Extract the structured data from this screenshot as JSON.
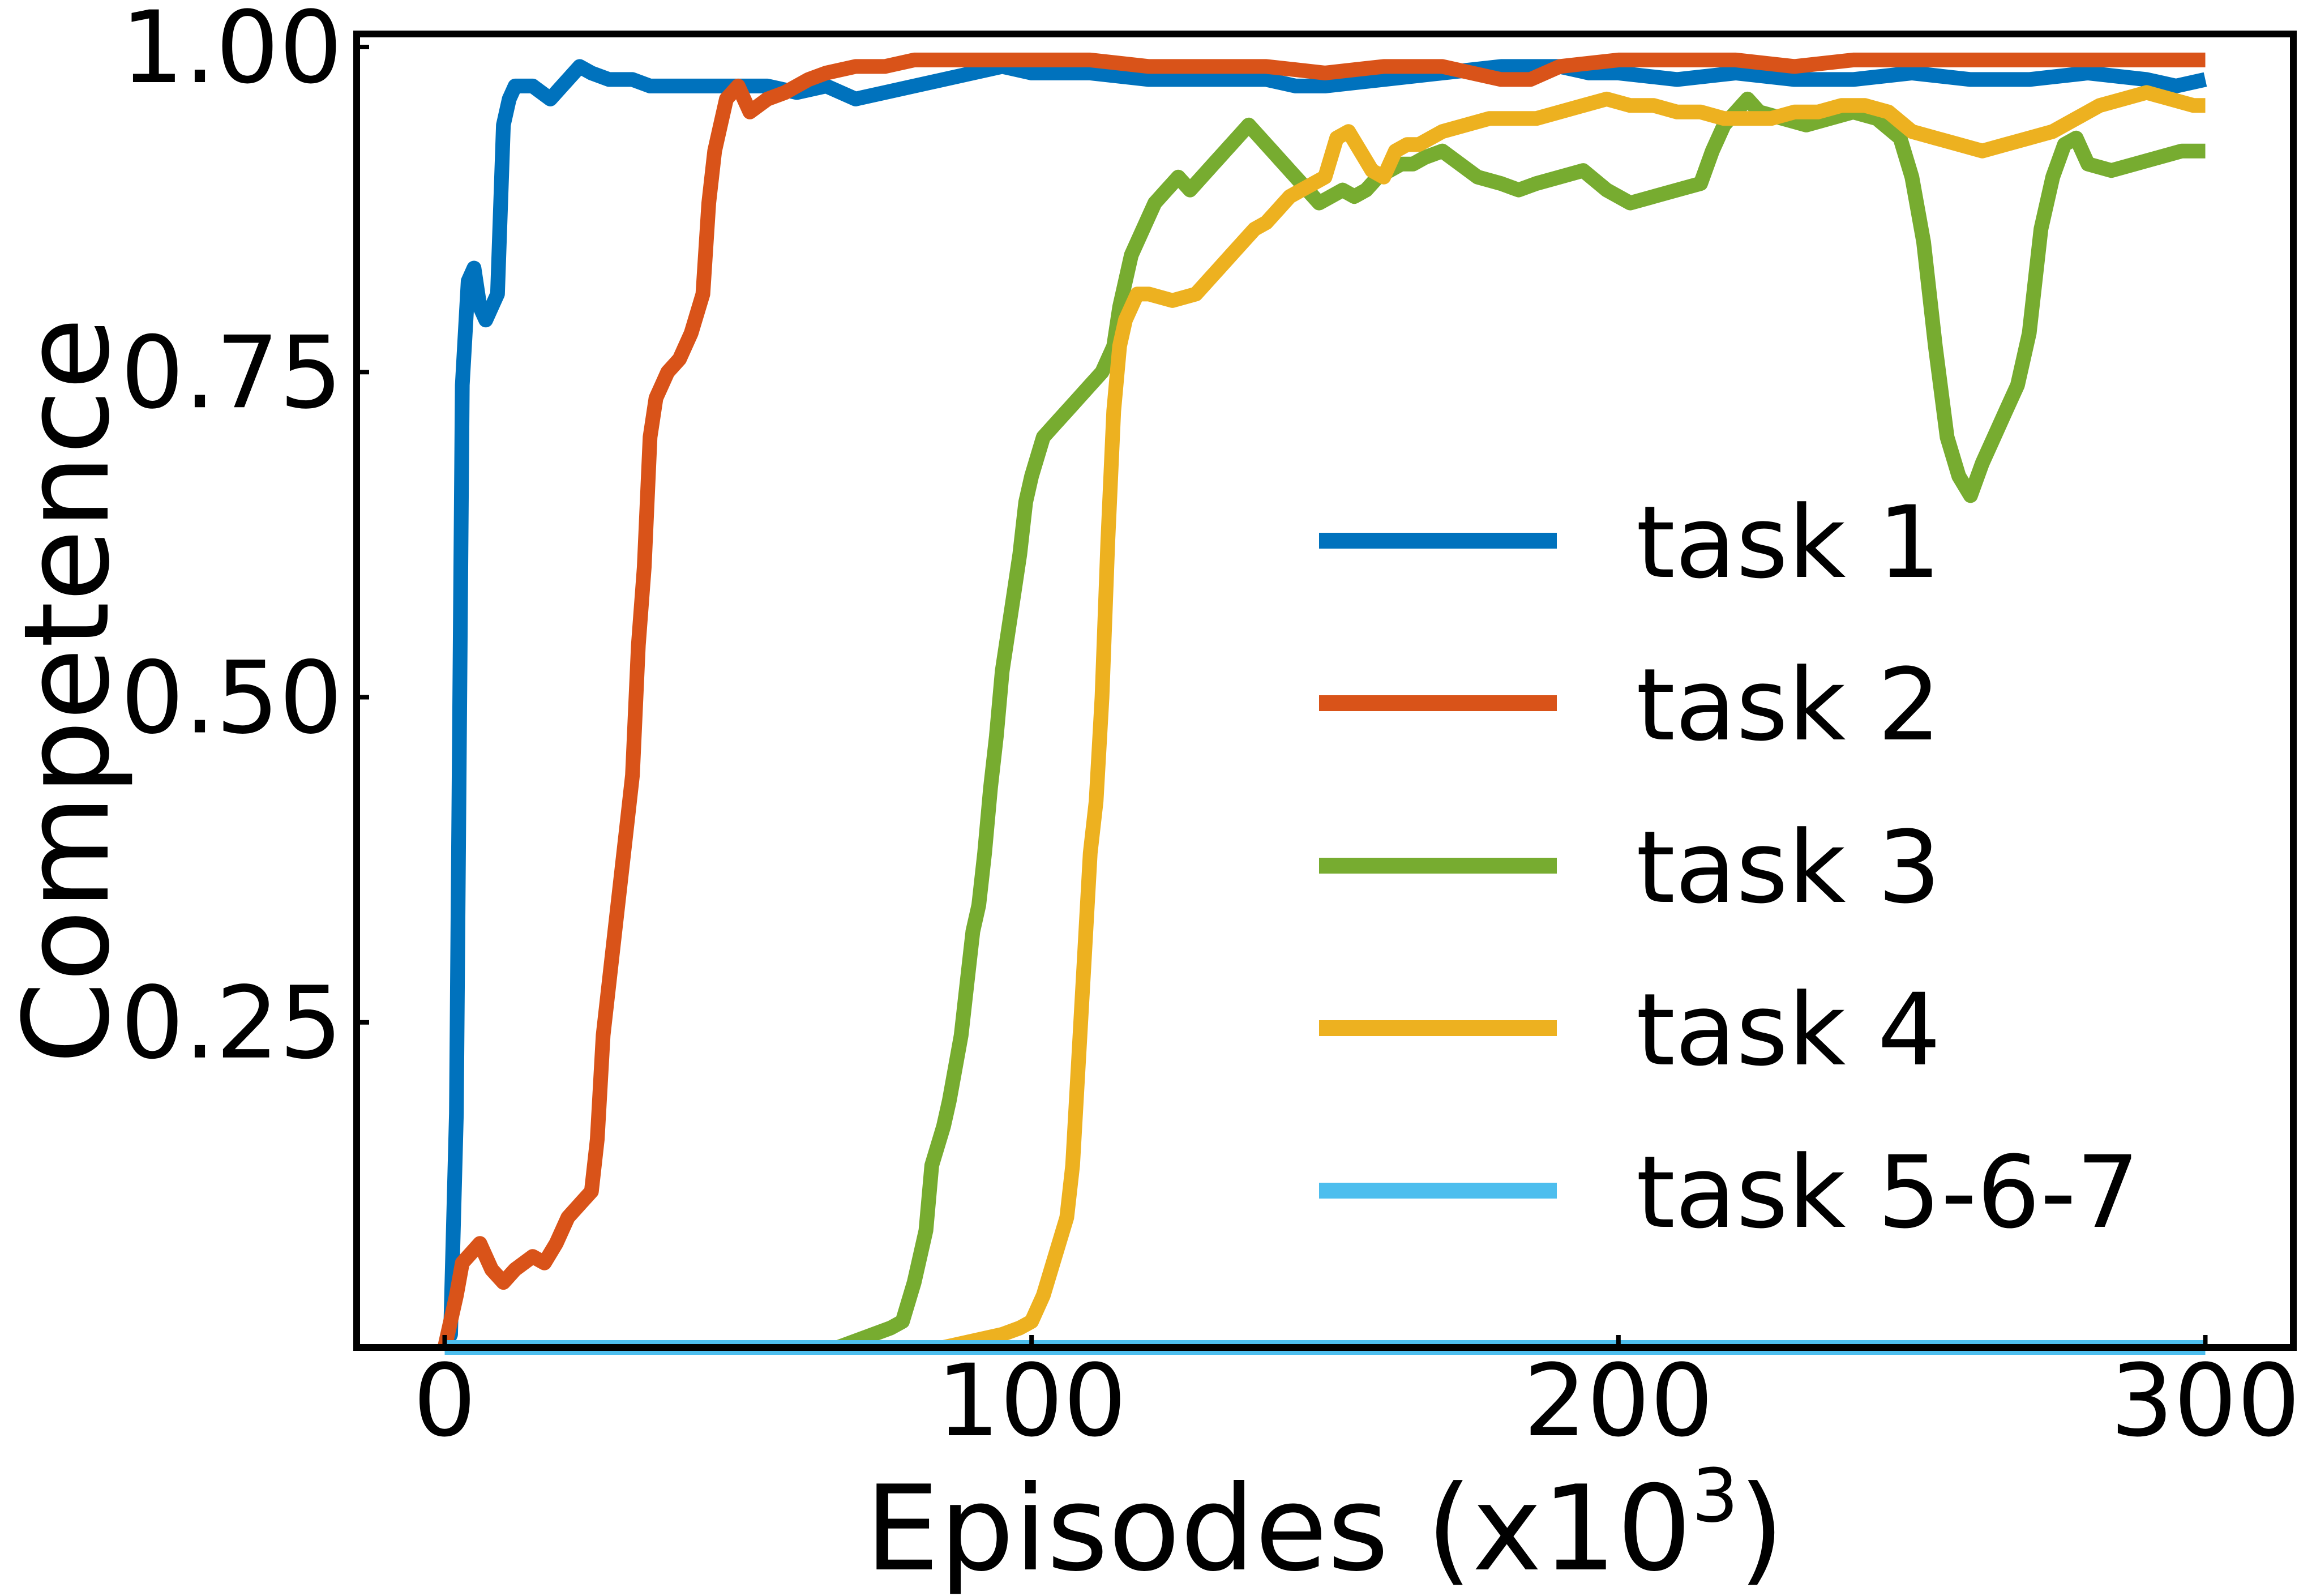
{
  "chart_data": {
    "type": "line",
    "xlabel": "Episodes (x10",
    "xlabel_sup": "3",
    "xlabel_close": ")",
    "ylabel": "Competence",
    "xlim": [
      -15,
      315
    ],
    "ylim": [
      0,
      1.01
    ],
    "x_ticks": [
      0,
      100,
      200,
      300
    ],
    "x_tick_labels": [
      "0",
      "100",
      "200",
      "300"
    ],
    "y_ticks": [
      0.25,
      0.5,
      0.75,
      1.0
    ],
    "y_tick_labels": [
      "0.25",
      "0.50",
      "0.75",
      "1.00"
    ],
    "grid": false,
    "legend_position": "lower right",
    "series": [
      {
        "name": "task 1",
        "color": "#0072BD",
        "points": [
          [
            0,
            0.0
          ],
          [
            1,
            0.01
          ],
          [
            2,
            0.18
          ],
          [
            3,
            0.74
          ],
          [
            4,
            0.82
          ],
          [
            5,
            0.83
          ],
          [
            6,
            0.8
          ],
          [
            7,
            0.79
          ],
          [
            8,
            0.8
          ],
          [
            9,
            0.81
          ],
          [
            10,
            0.94
          ],
          [
            11,
            0.96
          ],
          [
            12,
            0.97
          ],
          [
            15,
            0.97
          ],
          [
            18,
            0.96
          ],
          [
            20,
            0.97
          ],
          [
            22,
            0.98
          ],
          [
            23,
            0.985
          ],
          [
            25,
            0.98
          ],
          [
            28,
            0.975
          ],
          [
            32,
            0.975
          ],
          [
            35,
            0.97
          ],
          [
            40,
            0.97
          ],
          [
            45,
            0.97
          ],
          [
            50,
            0.97
          ],
          [
            55,
            0.97
          ],
          [
            60,
            0.965
          ],
          [
            65,
            0.97
          ],
          [
            70,
            0.96
          ],
          [
            75,
            0.965
          ],
          [
            80,
            0.97
          ],
          [
            85,
            0.975
          ],
          [
            90,
            0.98
          ],
          [
            95,
            0.985
          ],
          [
            100,
            0.98
          ],
          [
            110,
            0.98
          ],
          [
            120,
            0.975
          ],
          [
            130,
            0.975
          ],
          [
            140,
            0.975
          ],
          [
            145,
            0.97
          ],
          [
            150,
            0.97
          ],
          [
            160,
            0.975
          ],
          [
            170,
            0.98
          ],
          [
            180,
            0.985
          ],
          [
            190,
            0.985
          ],
          [
            195,
            0.98
          ],
          [
            200,
            0.98
          ],
          [
            210,
            0.975
          ],
          [
            220,
            0.98
          ],
          [
            230,
            0.975
          ],
          [
            240,
            0.975
          ],
          [
            250,
            0.98
          ],
          [
            260,
            0.975
          ],
          [
            270,
            0.975
          ],
          [
            280,
            0.98
          ],
          [
            290,
            0.975
          ],
          [
            295,
            0.97
          ],
          [
            300,
            0.975
          ]
        ]
      },
      {
        "name": "task 2",
        "color": "#D95319",
        "points": [
          [
            0,
            0.0
          ],
          [
            2,
            0.04
          ],
          [
            3,
            0.065
          ],
          [
            4,
            0.07
          ],
          [
            6,
            0.08
          ],
          [
            8,
            0.06
          ],
          [
            10,
            0.05
          ],
          [
            12,
            0.06
          ],
          [
            15,
            0.07
          ],
          [
            17,
            0.065
          ],
          [
            19,
            0.08
          ],
          [
            21,
            0.1
          ],
          [
            23,
            0.11
          ],
          [
            25,
            0.12
          ],
          [
            26,
            0.16
          ],
          [
            27,
            0.24
          ],
          [
            29,
            0.32
          ],
          [
            31,
            0.4
          ],
          [
            32,
            0.44
          ],
          [
            33,
            0.54
          ],
          [
            34,
            0.6
          ],
          [
            35,
            0.7
          ],
          [
            36,
            0.73
          ],
          [
            37,
            0.74
          ],
          [
            38,
            0.75
          ],
          [
            40,
            0.76
          ],
          [
            42,
            0.78
          ],
          [
            44,
            0.81
          ],
          [
            45,
            0.88
          ],
          [
            46,
            0.92
          ],
          [
            47,
            0.94
          ],
          [
            48,
            0.96
          ],
          [
            50,
            0.97
          ],
          [
            52,
            0.95
          ],
          [
            55,
            0.96
          ],
          [
            58,
            0.965
          ],
          [
            60,
            0.97
          ],
          [
            62,
            0.975
          ],
          [
            65,
            0.98
          ],
          [
            70,
            0.985
          ],
          [
            75,
            0.985
          ],
          [
            80,
            0.99
          ],
          [
            85,
            0.99
          ],
          [
            90,
            0.99
          ],
          [
            95,
            0.99
          ],
          [
            100,
            0.99
          ],
          [
            110,
            0.99
          ],
          [
            120,
            0.985
          ],
          [
            130,
            0.985
          ],
          [
            140,
            0.985
          ],
          [
            150,
            0.98
          ],
          [
            160,
            0.985
          ],
          [
            170,
            0.985
          ],
          [
            175,
            0.98
          ],
          [
            180,
            0.975
          ],
          [
            185,
            0.975
          ],
          [
            190,
            0.985
          ],
          [
            200,
            0.99
          ],
          [
            210,
            0.99
          ],
          [
            220,
            0.99
          ],
          [
            230,
            0.985
          ],
          [
            240,
            0.99
          ],
          [
            250,
            0.99
          ],
          [
            260,
            0.99
          ],
          [
            270,
            0.99
          ],
          [
            280,
            0.99
          ],
          [
            290,
            0.99
          ],
          [
            300,
            0.99
          ]
        ]
      },
      {
        "name": "task 3",
        "color": "#77AC30",
        "points": [
          [
            67,
            0.0
          ],
          [
            70,
            0.005
          ],
          [
            73,
            0.01
          ],
          [
            76,
            0.015
          ],
          [
            78,
            0.02
          ],
          [
            80,
            0.05
          ],
          [
            82,
            0.09
          ],
          [
            83,
            0.14
          ],
          [
            85,
            0.17
          ],
          [
            86,
            0.19
          ],
          [
            88,
            0.24
          ],
          [
            89,
            0.28
          ],
          [
            90,
            0.32
          ],
          [
            91,
            0.34
          ],
          [
            92,
            0.38
          ],
          [
            93,
            0.43
          ],
          [
            94,
            0.47
          ],
          [
            95,
            0.52
          ],
          [
            96,
            0.55
          ],
          [
            97,
            0.58
          ],
          [
            98,
            0.61
          ],
          [
            99,
            0.65
          ],
          [
            100,
            0.67
          ],
          [
            102,
            0.7
          ],
          [
            104,
            0.71
          ],
          [
            106,
            0.72
          ],
          [
            108,
            0.73
          ],
          [
            110,
            0.74
          ],
          [
            112,
            0.75
          ],
          [
            114,
            0.77
          ],
          [
            115,
            0.8
          ],
          [
            117,
            0.84
          ],
          [
            119,
            0.86
          ],
          [
            121,
            0.88
          ],
          [
            123,
            0.89
          ],
          [
            125,
            0.9
          ],
          [
            127,
            0.89
          ],
          [
            129,
            0.9
          ],
          [
            131,
            0.91
          ],
          [
            133,
            0.92
          ],
          [
            135,
            0.93
          ],
          [
            137,
            0.94
          ],
          [
            139,
            0.93
          ],
          [
            141,
            0.92
          ],
          [
            143,
            0.91
          ],
          [
            145,
            0.9
          ],
          [
            147,
            0.89
          ],
          [
            149,
            0.88
          ],
          [
            151,
            0.885
          ],
          [
            153,
            0.89
          ],
          [
            155,
            0.885
          ],
          [
            157,
            0.89
          ],
          [
            159,
            0.9
          ],
          [
            161,
            0.905
          ],
          [
            163,
            0.91
          ],
          [
            165,
            0.91
          ],
          [
            167,
            0.915
          ],
          [
            170,
            0.92
          ],
          [
            173,
            0.91
          ],
          [
            176,
            0.9
          ],
          [
            180,
            0.895
          ],
          [
            183,
            0.89
          ],
          [
            186,
            0.895
          ],
          [
            190,
            0.9
          ],
          [
            194,
            0.905
          ],
          [
            198,
            0.89
          ],
          [
            202,
            0.88
          ],
          [
            206,
            0.885
          ],
          [
            210,
            0.89
          ],
          [
            214,
            0.895
          ],
          [
            216,
            0.92
          ],
          [
            218,
            0.94
          ],
          [
            220,
            0.95
          ],
          [
            222,
            0.96
          ],
          [
            224,
            0.95
          ],
          [
            228,
            0.945
          ],
          [
            232,
            0.94
          ],
          [
            236,
            0.945
          ],
          [
            240,
            0.95
          ],
          [
            244,
            0.945
          ],
          [
            248,
            0.93
          ],
          [
            250,
            0.9
          ],
          [
            252,
            0.85
          ],
          [
            254,
            0.77
          ],
          [
            256,
            0.7
          ],
          [
            258,
            0.67
          ],
          [
            260,
            0.655
          ],
          [
            262,
            0.68
          ],
          [
            264,
            0.7
          ],
          [
            266,
            0.72
          ],
          [
            268,
            0.74
          ],
          [
            270,
            0.78
          ],
          [
            272,
            0.86
          ],
          [
            274,
            0.9
          ],
          [
            276,
            0.925
          ],
          [
            278,
            0.93
          ],
          [
            280,
            0.91
          ],
          [
            284,
            0.905
          ],
          [
            288,
            0.91
          ],
          [
            292,
            0.915
          ],
          [
            296,
            0.92
          ],
          [
            300,
            0.92
          ]
        ]
      },
      {
        "name": "task 4",
        "color": "#EDB120",
        "points": [
          [
            75,
            0.0
          ],
          [
            85,
            0.0
          ],
          [
            90,
            0.005
          ],
          [
            95,
            0.01
          ],
          [
            98,
            0.015
          ],
          [
            100,
            0.02
          ],
          [
            102,
            0.04
          ],
          [
            104,
            0.07
          ],
          [
            106,
            0.1
          ],
          [
            107,
            0.14
          ],
          [
            108,
            0.22
          ],
          [
            109,
            0.3
          ],
          [
            110,
            0.38
          ],
          [
            111,
            0.42
          ],
          [
            112,
            0.5
          ],
          [
            113,
            0.62
          ],
          [
            114,
            0.72
          ],
          [
            115,
            0.77
          ],
          [
            116,
            0.79
          ],
          [
            118,
            0.81
          ],
          [
            120,
            0.81
          ],
          [
            124,
            0.805
          ],
          [
            128,
            0.81
          ],
          [
            130,
            0.82
          ],
          [
            132,
            0.83
          ],
          [
            134,
            0.84
          ],
          [
            136,
            0.85
          ],
          [
            138,
            0.86
          ],
          [
            140,
            0.865
          ],
          [
            142,
            0.875
          ],
          [
            144,
            0.885
          ],
          [
            146,
            0.89
          ],
          [
            148,
            0.895
          ],
          [
            150,
            0.9
          ],
          [
            152,
            0.93
          ],
          [
            154,
            0.935
          ],
          [
            156,
            0.92
          ],
          [
            158,
            0.905
          ],
          [
            160,
            0.9
          ],
          [
            162,
            0.92
          ],
          [
            164,
            0.925
          ],
          [
            166,
            0.925
          ],
          [
            168,
            0.93
          ],
          [
            170,
            0.935
          ],
          [
            174,
            0.94
          ],
          [
            178,
            0.945
          ],
          [
            182,
            0.945
          ],
          [
            186,
            0.945
          ],
          [
            190,
            0.95
          ],
          [
            194,
            0.955
          ],
          [
            198,
            0.96
          ],
          [
            202,
            0.955
          ],
          [
            206,
            0.955
          ],
          [
            210,
            0.95
          ],
          [
            214,
            0.95
          ],
          [
            218,
            0.945
          ],
          [
            222,
            0.945
          ],
          [
            226,
            0.945
          ],
          [
            230,
            0.95
          ],
          [
            234,
            0.95
          ],
          [
            238,
            0.955
          ],
          [
            242,
            0.955
          ],
          [
            246,
            0.95
          ],
          [
            250,
            0.935
          ],
          [
            254,
            0.93
          ],
          [
            258,
            0.925
          ],
          [
            262,
            0.92
          ],
          [
            266,
            0.925
          ],
          [
            270,
            0.93
          ],
          [
            274,
            0.935
          ],
          [
            278,
            0.945
          ],
          [
            282,
            0.955
          ],
          [
            286,
            0.96
          ],
          [
            290,
            0.965
          ],
          [
            294,
            0.96
          ],
          [
            298,
            0.955
          ],
          [
            300,
            0.955
          ]
        ]
      },
      {
        "name": "task 5-6-7",
        "color": "#4DBEEE",
        "points": [
          [
            0,
            0.0
          ],
          [
            300,
            0.0
          ]
        ]
      }
    ]
  }
}
